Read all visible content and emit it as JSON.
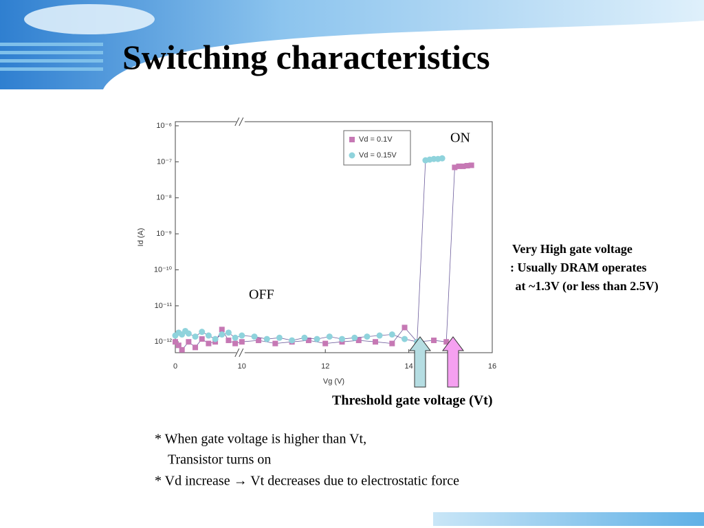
{
  "title": "Switching characteristics",
  "chart_data": {
    "type": "scatter",
    "x_label": "Vg (V)",
    "y_label": "Id (A)",
    "xlim": [
      0,
      16
    ],
    "xticks": [
      0,
      10,
      12,
      14,
      16
    ],
    "x_axis_break": true,
    "ylim": [
      5e-13,
      1.3e-06
    ],
    "log_y": true,
    "yticks": [
      {
        "value": 1e-06,
        "label": "10⁻⁶"
      },
      {
        "value": 1e-07,
        "label": "10⁻⁷"
      },
      {
        "value": 1e-08,
        "label": "10⁻⁸"
      },
      {
        "value": 1e-09,
        "label": "10⁻⁹"
      },
      {
        "value": 1e-10,
        "label": "10⁻¹⁰"
      },
      {
        "value": 1e-11,
        "label": "10⁻¹¹"
      },
      {
        "value": 1e-12,
        "label": "10⁻¹²"
      }
    ],
    "grid": false,
    "legend": "top",
    "annotations": [
      "ON",
      "OFF"
    ],
    "series": [
      {
        "name": "Vd = 0.1V",
        "color": "#c678b4",
        "marker": "square",
        "x": [
          0,
          0.5,
          1,
          2,
          3,
          4,
          5,
          6,
          7,
          8,
          9,
          10,
          10.4,
          10.8,
          11.2,
          11.6,
          12,
          12.4,
          12.8,
          13.2,
          13.6,
          13.9,
          14.2,
          14.6,
          14.9,
          15.1,
          15.2,
          15.3,
          15.4,
          15.5
        ],
        "values": [
          1e-12,
          8e-13,
          6e-13,
          1e-12,
          7e-13,
          1.2e-12,
          9e-13,
          1e-12,
          2.2e-12,
          1.1e-12,
          9e-13,
          1e-12,
          1.1e-12,
          9e-13,
          1e-12,
          1.1e-12,
          9e-13,
          1e-12,
          1.1e-12,
          1e-12,
          9e-13,
          2.5e-12,
          1e-12,
          1.1e-12,
          1e-12,
          7e-08,
          7.5e-08,
          7.5e-08,
          7.8e-08,
          8e-08
        ]
      },
      {
        "name": "Vd = 0.15V",
        "color": "#8fd3dc",
        "marker": "circle",
        "x": [
          0,
          0.5,
          1,
          1.5,
          2,
          3,
          4,
          5,
          6,
          7,
          8,
          9,
          10,
          10.3,
          10.6,
          10.9,
          11.2,
          11.5,
          11.8,
          12.1,
          12.4,
          12.7,
          13,
          13.3,
          13.6,
          13.9,
          14.2,
          14.4,
          14.5,
          14.6,
          14.7,
          14.8
        ],
        "values": [
          1.5e-12,
          1.8e-12,
          1.6e-12,
          2e-12,
          1.7e-12,
          1.4e-12,
          1.9e-12,
          1.5e-12,
          1.2e-12,
          1.6e-12,
          1.8e-12,
          1.3e-12,
          1.5e-12,
          1.4e-12,
          1.2e-12,
          1.3e-12,
          1.1e-12,
          1.3e-12,
          1.2e-12,
          1.4e-12,
          1.2e-12,
          1.3e-12,
          1.4e-12,
          1.5e-12,
          1.6e-12,
          1.2e-12,
          1e-12,
          1.1e-07,
          1.15e-07,
          1.2e-07,
          1.2e-07,
          1.25e-07
        ]
      }
    ]
  },
  "note": [
    "Very High gate voltage",
    ": Usually DRAM operates",
    " at ~1.3V (or less than 2.5V)"
  ],
  "threshold_label": "Threshold gate voltage (Vt)",
  "bullets": [
    "* When gate voltage is higher than Vt,",
    "Transistor turns on",
    "* Vd increase → Vt decreases due to electrostatic force"
  ]
}
